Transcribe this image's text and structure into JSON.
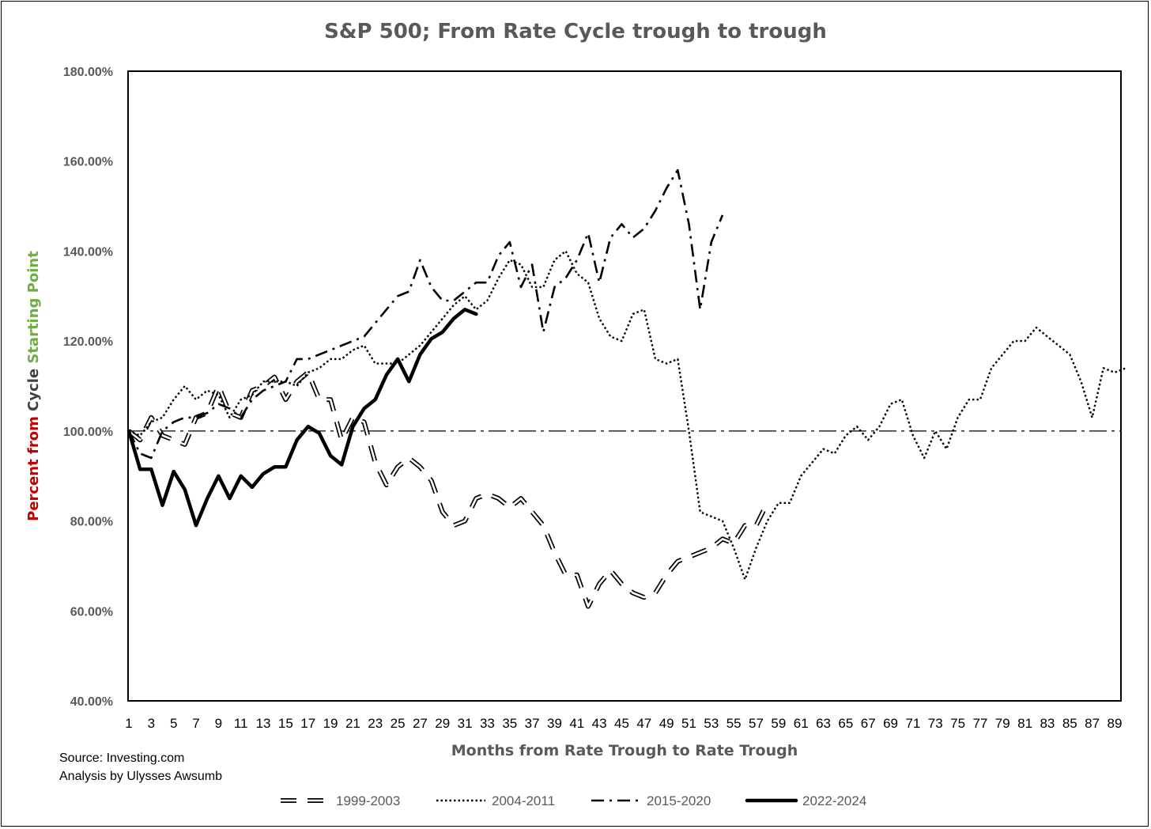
{
  "chart_data": {
    "type": "line",
    "title": "S&P 500; From Rate Cycle trough to trough",
    "xlabel": "Months from Rate Trough to Rate Trough",
    "ylabel_parts": [
      {
        "text": "Percent from ",
        "color": "#C00000"
      },
      {
        "text": "Cycle ",
        "color": "#404040"
      },
      {
        "text": "Starting Point",
        "color": "#70AD47"
      }
    ],
    "ylim": [
      40,
      180
    ],
    "yticks": [
      "40.00%",
      "60.00%",
      "80.00%",
      "100.00%",
      "120.00%",
      "140.00%",
      "160.00%",
      "180.00%"
    ],
    "ytick_values": [
      40,
      60,
      80,
      100,
      120,
      140,
      160,
      180
    ],
    "xlim": [
      1,
      90
    ],
    "xticks": [
      "1",
      "3",
      "5",
      "7",
      "9",
      "11",
      "13",
      "15",
      "17",
      "19",
      "21",
      "23",
      "25",
      "27",
      "29",
      "31",
      "33",
      "35",
      "37",
      "39",
      "41",
      "43",
      "45",
      "47",
      "49",
      "51",
      "53",
      "55",
      "57",
      "59",
      "61",
      "63",
      "65",
      "67",
      "69",
      "71",
      "73",
      "75",
      "77",
      "79",
      "81",
      "83",
      "85",
      "87",
      "89"
    ],
    "grid": false,
    "legend_position": "bottom",
    "reference_line": {
      "y": 100,
      "style": "dash-dot"
    },
    "series": [
      {
        "name": "1999-2003",
        "style": "long-dash-outline",
        "values": [
          100,
          98,
          103,
          99,
          98,
          97,
          103,
          104,
          110,
          104,
          103,
          109,
          110,
          112,
          107,
          111,
          113,
          107,
          107,
          98,
          103,
          102,
          93,
          88,
          92,
          94,
          92,
          89,
          82,
          79,
          80,
          85,
          86,
          85,
          83,
          85,
          82,
          79,
          73,
          68,
          68,
          61,
          66,
          69,
          66,
          64,
          63,
          64,
          68,
          71,
          72,
          73,
          74,
          76,
          75,
          79,
          79,
          84
        ]
      },
      {
        "name": "2004-2011",
        "style": "dotted",
        "values": [
          100,
          99,
          102,
          103,
          107,
          110,
          107,
          109,
          108,
          103,
          107,
          108,
          111,
          111,
          111,
          110,
          113,
          114,
          116,
          116,
          118,
          119,
          115,
          115,
          115,
          117,
          119,
          122,
          125,
          128,
          130,
          127,
          129,
          134,
          138,
          137,
          132,
          132,
          138,
          140,
          135,
          133,
          125,
          121,
          120,
          126,
          127,
          116,
          115,
          116,
          100,
          82,
          81,
          80,
          74,
          67,
          74,
          80,
          84,
          84,
          90,
          93,
          96,
          95,
          99,
          101,
          98,
          101,
          106,
          107,
          99,
          94,
          100,
          96,
          103,
          107,
          107,
          114,
          117,
          120,
          120,
          123,
          121,
          119,
          117,
          111,
          103,
          114,
          113,
          114
        ]
      },
      {
        "name": "2015-2020",
        "style": "dash-dot",
        "values": [
          100,
          95,
          94,
          100,
          102,
          103,
          103,
          104,
          106,
          105,
          103,
          107,
          109,
          110,
          111,
          116,
          116,
          117,
          118,
          119,
          120,
          121,
          124,
          127,
          130,
          131,
          138,
          132,
          129,
          129,
          131,
          133,
          133,
          139,
          142,
          132,
          137,
          122,
          132,
          134,
          138,
          144,
          133,
          143,
          146,
          143,
          145,
          149,
          154,
          158,
          146,
          127,
          142,
          148
        ]
      },
      {
        "name": "2022-2024",
        "style": "solid-bold",
        "values": [
          100,
          91.5,
          91.5,
          83.5,
          91,
          87,
          79,
          85,
          90,
          85,
          90,
          87.5,
          90.5,
          92,
          92,
          98,
          101,
          99.5,
          94.5,
          92.5,
          101,
          105,
          107,
          112.5,
          116,
          111,
          117,
          120.5,
          122,
          125,
          127,
          126
        ]
      }
    ]
  },
  "source": {
    "line1": "Source: Investing.com",
    "line2": "Analysis by Ulysses Awsumb"
  }
}
